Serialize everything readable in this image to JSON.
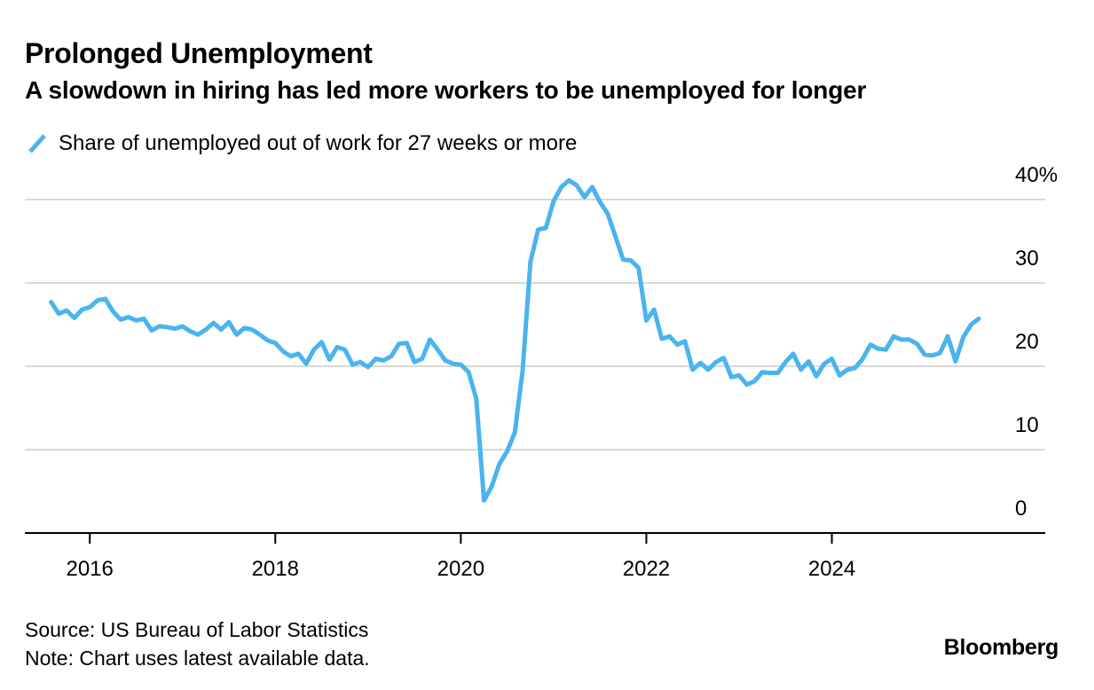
{
  "header": {
    "title": "Prolonged Unemployment",
    "subtitle": "A slowdown in hiring has led more workers to be unemployed for longer"
  },
  "footer": {
    "source": "Source: US Bureau of Labor Statistics",
    "note": "Note: Chart uses latest available data.",
    "brand": "Bloomberg"
  },
  "colors": {
    "line": "#4AB4EE",
    "grid": "#d9d9d9",
    "axis": "#000000"
  },
  "chart_data": {
    "type": "line",
    "title": "Prolonged Unemployment",
    "subtitle": "A slowdown in hiring has led more workers to be unemployed for longer",
    "xlabel": "",
    "ylabel": "",
    "ylim": [
      0,
      40
    ],
    "xlim": [
      2015.3,
      2026.3
    ],
    "grid": true,
    "legend_placement": "top-left",
    "y_ticks": [
      {
        "value": 40,
        "label": "40%"
      },
      {
        "value": 30,
        "label": "30"
      },
      {
        "value": 20,
        "label": "20"
      },
      {
        "value": 10,
        "label": "10"
      },
      {
        "value": 0,
        "label": "0"
      }
    ],
    "x_ticks": [
      {
        "value": 2016,
        "label": "2016"
      },
      {
        "value": 2018,
        "label": "2018"
      },
      {
        "value": 2020,
        "label": "2020"
      },
      {
        "value": 2022,
        "label": "2022"
      },
      {
        "value": 2024,
        "label": "2024"
      }
    ],
    "series": [
      {
        "name": "Share of unemployed out of work for 27 weeks or more",
        "color": "#4AB4EE",
        "x": [
          "2015-08",
          "2015-09",
          "2015-10",
          "2015-11",
          "2015-12",
          "2016-01",
          "2016-02",
          "2016-03",
          "2016-04",
          "2016-05",
          "2016-06",
          "2016-07",
          "2016-08",
          "2016-09",
          "2016-10",
          "2016-11",
          "2016-12",
          "2017-01",
          "2017-02",
          "2017-03",
          "2017-04",
          "2017-05",
          "2017-06",
          "2017-07",
          "2017-08",
          "2017-09",
          "2017-10",
          "2017-11",
          "2017-12",
          "2018-01",
          "2018-02",
          "2018-03",
          "2018-04",
          "2018-05",
          "2018-06",
          "2018-07",
          "2018-08",
          "2018-09",
          "2018-10",
          "2018-11",
          "2018-12",
          "2019-01",
          "2019-02",
          "2019-03",
          "2019-04",
          "2019-05",
          "2019-06",
          "2019-07",
          "2019-08",
          "2019-09",
          "2019-10",
          "2019-11",
          "2019-12",
          "2020-01",
          "2020-02",
          "2020-03",
          "2020-04",
          "2020-05",
          "2020-06",
          "2020-07",
          "2020-08",
          "2020-09",
          "2020-10",
          "2020-11",
          "2020-12",
          "2021-01",
          "2021-02",
          "2021-03",
          "2021-04",
          "2021-05",
          "2021-06",
          "2021-07",
          "2021-08",
          "2021-09",
          "2021-10",
          "2021-11",
          "2021-12",
          "2022-01",
          "2022-02",
          "2022-03",
          "2022-04",
          "2022-05",
          "2022-06",
          "2022-07",
          "2022-08",
          "2022-09",
          "2022-10",
          "2022-11",
          "2022-12",
          "2023-01",
          "2023-02",
          "2023-03",
          "2023-04",
          "2023-05",
          "2023-06",
          "2023-07",
          "2023-08",
          "2023-09",
          "2023-10",
          "2023-11",
          "2023-12",
          "2024-01",
          "2024-02",
          "2024-03",
          "2024-04",
          "2024-05",
          "2024-06",
          "2024-07",
          "2024-08",
          "2024-09",
          "2024-10",
          "2024-11",
          "2024-12",
          "2025-01",
          "2025-02",
          "2025-03",
          "2025-04",
          "2025-05",
          "2025-06",
          "2025-07",
          "2025-08"
        ],
        "values": [
          27.7,
          26.3,
          26.7,
          25.8,
          26.8,
          27.1,
          27.9,
          28.1,
          26.6,
          25.6,
          25.9,
          25.5,
          25.7,
          24.3,
          24.8,
          24.7,
          24.5,
          24.8,
          24.2,
          23.8,
          24.4,
          25.2,
          24.4,
          25.3,
          23.8,
          24.6,
          24.4,
          23.8,
          23.1,
          22.8,
          21.8,
          21.2,
          21.5,
          20.3,
          22.0,
          22.9,
          20.8,
          22.3,
          22.0,
          20.2,
          20.5,
          19.9,
          20.9,
          20.7,
          21.2,
          22.7,
          22.8,
          20.5,
          20.9,
          23.2,
          22.0,
          20.7,
          20.3,
          20.2,
          19.3,
          16.1,
          3.9,
          5.6,
          8.3,
          9.8,
          12.1,
          19.6,
          32.5,
          36.4,
          36.6,
          39.8,
          41.5,
          42.3,
          41.7,
          40.3,
          41.5,
          39.7,
          38.3,
          35.6,
          32.8,
          32.7,
          31.8,
          25.5,
          26.8,
          23.3,
          23.6,
          22.6,
          23.0,
          19.6,
          20.4,
          19.6,
          20.5,
          21.0,
          18.7,
          18.9,
          17.8,
          18.2,
          19.3,
          19.2,
          19.2,
          20.5,
          21.5,
          19.6,
          20.6,
          18.8,
          20.3,
          20.9,
          18.9,
          19.6,
          19.8,
          20.9,
          22.6,
          22.1,
          22.0,
          23.6,
          23.2,
          23.2,
          22.7,
          21.4,
          21.3,
          21.6,
          23.6,
          20.6,
          23.5,
          25.0,
          25.7
        ]
      }
    ]
  }
}
